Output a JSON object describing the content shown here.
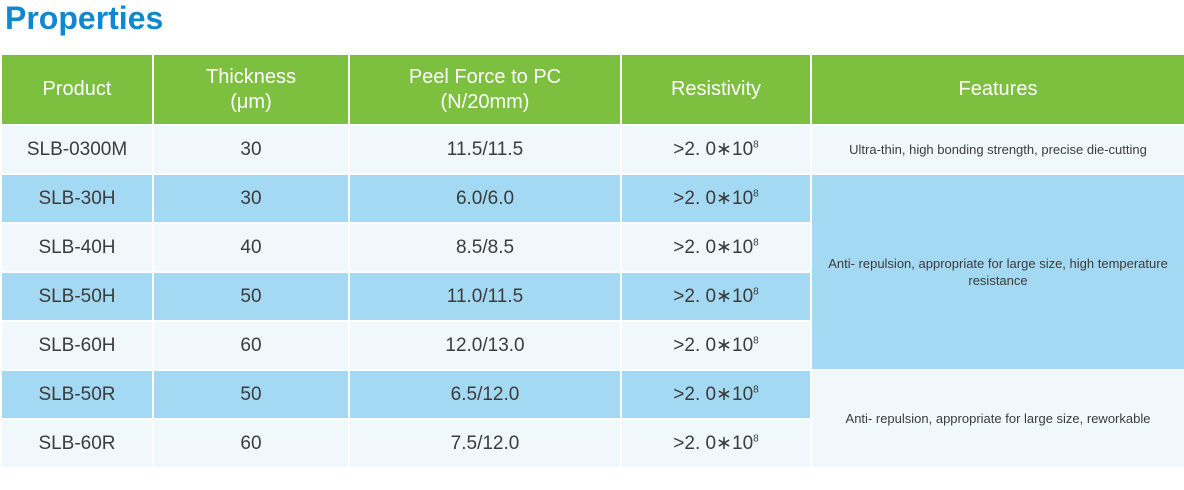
{
  "page": {
    "title": "Properties"
  },
  "colors": {
    "title_blue": "#1187d0",
    "header_green": "#7dbf3f",
    "header_text": "#ffffff",
    "row_light": "#f0f8fc",
    "row_blue": "#a3d9f3",
    "body_text": "#3c3c3c"
  },
  "table": {
    "columns": [
      {
        "label": "Product",
        "sub": ""
      },
      {
        "label": "Thickness",
        "sub": "(μm)"
      },
      {
        "label": "Peel Force to PC",
        "sub": "(N/20mm)"
      },
      {
        "label": "Resistivity",
        "sub": ""
      },
      {
        "label": "Features",
        "sub": ""
      }
    ],
    "rows": [
      {
        "product": "SLB-0300M",
        "thickness": "30",
        "peel_force": "11.5/11.5",
        "resistivity_base": ">2. 0∗10",
        "resistivity_exp": "8"
      },
      {
        "product": "SLB-30H",
        "thickness": "30",
        "peel_force": "6.0/6.0",
        "resistivity_base": ">2. 0∗10",
        "resistivity_exp": "8"
      },
      {
        "product": "SLB-40H",
        "thickness": "40",
        "peel_force": "8.5/8.5",
        "resistivity_base": ">2. 0∗10",
        "resistivity_exp": "8"
      },
      {
        "product": "SLB-50H",
        "thickness": "50",
        "peel_force": "11.0/11.5",
        "resistivity_base": ">2. 0∗10",
        "resistivity_exp": "8"
      },
      {
        "product": "SLB-60H",
        "thickness": "60",
        "peel_force": "12.0/13.0",
        "resistivity_base": ">2. 0∗10",
        "resistivity_exp": "8"
      },
      {
        "product": "SLB-50R",
        "thickness": "50",
        "peel_force": "6.5/12.0",
        "resistivity_base": ">2. 0∗10",
        "resistivity_exp": "8"
      },
      {
        "product": "SLB-60R",
        "thickness": "60",
        "peel_force": "7.5/12.0",
        "resistivity_base": ">2. 0∗10",
        "resistivity_exp": "8"
      }
    ],
    "features": [
      {
        "text": "Ultra-thin, high bonding strength, precise die-cutting",
        "rowspan": 1
      },
      {
        "text": "Anti- repulsion, appropriate for large size, high temperature resistance",
        "rowspan": 4
      },
      {
        "text": "Anti- repulsion, appropriate for large size, reworkable",
        "rowspan": 2
      }
    ]
  }
}
